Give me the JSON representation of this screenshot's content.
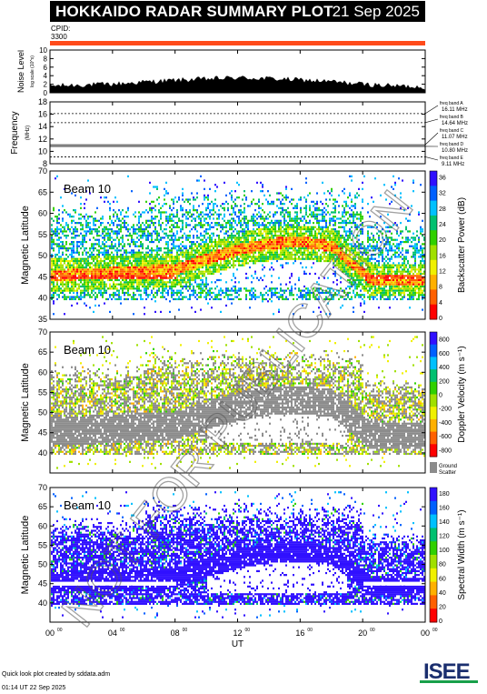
{
  "header": {
    "title": "HOKKAIDO RADAR SUMMARY PLOT",
    "date": "21 Sep 2025",
    "cpid_label": "CPID:",
    "cpid_value": "3300"
  },
  "footer": {
    "line1": "Quick look plot created by sddata.adm",
    "line2": "01:14 UT 22 Sep 2025"
  },
  "watermark": "NOT FOR PUBLICATION",
  "logo_text": "ISEE",
  "colors": {
    "cpid_bar": "#ff4a1a",
    "ground_scatter": "#8c8c8c"
  },
  "chart_data": [
    {
      "type": "area",
      "name": "noise",
      "ylabel": "Noise Level",
      "ysublabel": "log scale (10^x)",
      "ylim": [
        0,
        10
      ],
      "yticks": [
        "0",
        "2",
        "4",
        "6",
        "8",
        "10"
      ],
      "x": [
        0,
        2,
        4,
        6,
        8,
        10,
        12,
        14,
        16,
        18,
        20,
        22,
        24
      ],
      "values": [
        1.6,
        1.8,
        2.0,
        2.5,
        2.9,
        3.2,
        3.5,
        3.3,
        3.0,
        2.6,
        2.0,
        1.6,
        1.4
      ]
    },
    {
      "type": "line",
      "name": "frequency",
      "ylabel": "Frequency",
      "ysublabel": "(MHz)",
      "ylim": [
        8,
        18
      ],
      "yticks": [
        "8",
        "10",
        "12",
        "14",
        "16",
        "18"
      ],
      "bands": [
        {
          "label": "freq band A",
          "value": "16.11 MHz",
          "mhz": 16.11
        },
        {
          "label": "freq band B",
          "value": "14.64 MHz",
          "mhz": 14.64
        },
        {
          "label": "freq band C",
          "value": "11.07 MHz",
          "mhz": 11.07
        },
        {
          "label": "freq band D",
          "value": "10.80 MHz",
          "mhz": 10.8
        },
        {
          "label": "freq band E",
          "value": "9.11 MHz",
          "mhz": 9.11
        }
      ]
    },
    {
      "type": "heatmap",
      "name": "power",
      "beam": "Beam 10",
      "ylabel": "Magnetic Latitude",
      "ylim": [
        35,
        70
      ],
      "yticks": [
        "35",
        "40",
        "45",
        "50",
        "55",
        "60",
        "65",
        "70"
      ],
      "colorbar_label": "Backscatter Power (dB)",
      "colorbar_ticks": [
        "0",
        "4",
        "8",
        "12",
        "16",
        "20",
        "24",
        "28",
        "32",
        "36"
      ],
      "colorbar_colors": [
        "#3010ff",
        "#0060ff",
        "#00c0ff",
        "#00c070",
        "#30d000",
        "#a0e000",
        "#f0f000",
        "#ffb000",
        "#ff6000",
        "#ff0000"
      ]
    },
    {
      "type": "heatmap",
      "name": "velocity",
      "beam": "Beam 10",
      "ylabel": "Magnetic Latitude",
      "ylim": [
        35,
        70
      ],
      "yticks": [
        "40",
        "45",
        "50",
        "55",
        "60",
        "65",
        "70"
      ],
      "colorbar_label": "Doppler Velocity (m s⁻¹)",
      "colorbar_ticks": [
        "800",
        "600",
        "400",
        "200",
        "0",
        "-200",
        "-400",
        "-600",
        "-800"
      ],
      "colorbar_colors": [
        "#3010ff",
        "#0060ff",
        "#00c0ff",
        "#00c070",
        "#30d000",
        "#a0e000",
        "#f0f000",
        "#ffb000",
        "#ff6000",
        "#ff0000"
      ],
      "ground_label_1": "Ground",
      "ground_label_2": "Scatter"
    },
    {
      "type": "heatmap",
      "name": "width",
      "beam": "Beam 10",
      "ylabel": "Magnetic Latitude",
      "ylim": [
        35,
        70
      ],
      "yticks": [
        "40",
        "45",
        "50",
        "55",
        "60",
        "65",
        "70"
      ],
      "colorbar_label": "Spectral Width (m s⁻¹)",
      "colorbar_ticks": [
        "0",
        "20",
        "40",
        "60",
        "80",
        "100",
        "120",
        "140",
        "160",
        "180"
      ],
      "colorbar_colors": [
        "#3010ff",
        "#0060ff",
        "#00c0ff",
        "#00c070",
        "#30d000",
        "#a0e000",
        "#f0f000",
        "#ffb000",
        "#ff6000",
        "#ff0000"
      ]
    }
  ],
  "xaxis": {
    "xlabel": "UT",
    "ticks": [
      {
        "h": 0,
        "label": "00",
        "sup": "00"
      },
      {
        "h": 4,
        "label": "04",
        "sup": "00"
      },
      {
        "h": 8,
        "label": "08",
        "sup": "00"
      },
      {
        "h": 12,
        "label": "12",
        "sup": "00"
      },
      {
        "h": 16,
        "label": "16",
        "sup": "00"
      },
      {
        "h": 20,
        "label": "20",
        "sup": "00"
      },
      {
        "h": 24,
        "label": "00",
        "sup": "00"
      }
    ]
  }
}
